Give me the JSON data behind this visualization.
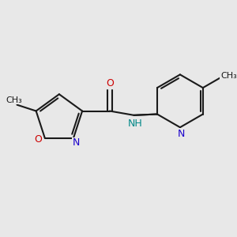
{
  "bg_color": "#e8e8e8",
  "bond_color": "#1a1a1a",
  "bond_width": 1.5,
  "dbo": 0.048,
  "colors": {
    "C": "#1a1a1a",
    "N_iso": "#1a00cc",
    "N_py": "#1a00cc",
    "O_iso": "#cc0000",
    "O_carb": "#cc0000",
    "NH": "#008888"
  },
  "fs": 9.0,
  "fs_me": 8.0,
  "xlim": [
    -1.8,
    2.4
  ],
  "ylim": [
    -1.4,
    1.2
  ]
}
